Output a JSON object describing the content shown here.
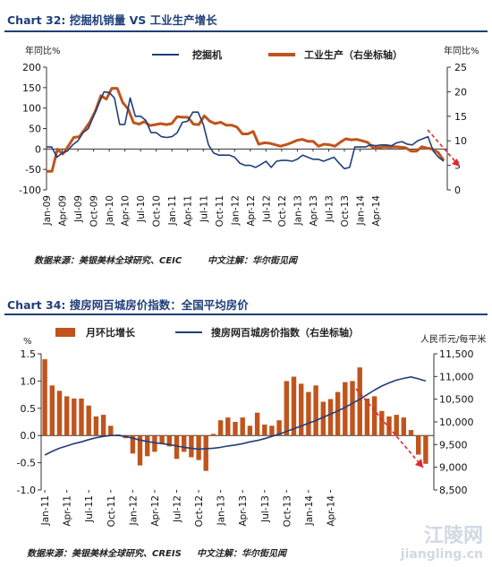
{
  "chart_data": [
    {
      "type": "line",
      "title": "Chart 32: 挖掘机销量 VS 工业生产增长",
      "left_axis_unit": "年同比%",
      "right_axis_unit": "年同比%",
      "ylim_left": [
        -100,
        200
      ],
      "yticks_left": [
        "-100",
        "-50",
        "0",
        "50",
        "100",
        "150",
        "200"
      ],
      "ylim_right": [
        0,
        25
      ],
      "yticks_right": [
        "0",
        "5",
        "10",
        "15",
        "20",
        "25"
      ],
      "x_tick_labels": [
        "Jan-09",
        "Apr-09",
        "Jul-09",
        "Oct-09",
        "Jan-10",
        "Apr-10",
        "Jul-10",
        "Oct-10",
        "Jan-11",
        "Apr-11",
        "Jul-11",
        "Oct-11",
        "Jan-12",
        "Apr-12",
        "Jul-12",
        "Oct-12",
        "Jan-13",
        "Apr-13",
        "Jul-13",
        "Oct-13",
        "Jan-14",
        "Apr-14"
      ],
      "grid": false,
      "legend_placement": "top",
      "series": [
        {
          "name": "挖掘机",
          "axis": "left",
          "color": "#1f3f7a",
          "values": [
            5,
            5,
            -20,
            -10,
            -5,
            10,
            20,
            40,
            50,
            80,
            110,
            140,
            138,
            125,
            60,
            60,
            125,
            80,
            80,
            70,
            40,
            40,
            30,
            28,
            30,
            40,
            65,
            68,
            90,
            90,
            60,
            10,
            -10,
            -15,
            -15,
            -15,
            -20,
            -35,
            -40,
            -40,
            -45,
            -38,
            -30,
            -45,
            -30,
            -28,
            -28,
            -30,
            -25,
            -15,
            -20,
            -25,
            -25,
            -30,
            -25,
            -20,
            -35,
            -48,
            -45,
            5,
            5,
            5,
            10,
            8,
            10,
            10,
            8,
            15,
            18,
            12,
            10,
            20,
            25,
            30,
            -5,
            -20,
            -30
          ]
        },
        {
          "name": "工业生产（右坐标轴）",
          "axis": "right",
          "color": "#c0541c",
          "values": [
            3.8,
            3.8,
            8.3,
            7.3,
            8.9,
            10.7,
            10.8,
            12.3,
            13.9,
            16.1,
            19.2,
            18.5,
            20.7,
            20.7,
            17.8,
            16.5,
            13.7,
            13.4,
            13.9,
            13.1,
            13.3,
            13.5,
            13.3,
            13.5,
            14.9,
            14.8,
            14.8,
            13.4,
            13.3,
            15.1,
            14.0,
            13.5,
            13.8,
            13.2,
            13.2,
            12.8,
            11.4,
            11.4,
            11.9,
            9.3,
            9.6,
            9.5,
            9.2,
            8.9,
            9.2,
            9.6,
            10.1,
            10.3,
            9.9,
            9.9,
            8.9,
            9.3,
            9.2,
            8.9,
            9.7,
            10.4,
            10.2,
            10.3,
            10.0,
            9.7,
            8.6,
            8.6,
            8.8,
            8.7,
            8.8,
            8.7,
            8.6,
            7.9,
            7.9,
            8.8,
            8.5,
            8.3,
            7.6,
            6.0
          ]
        }
      ],
      "source_note": "数据来源：美银美林全球研究、CEIC",
      "translation_note": "中文注解：华尔街见闻"
    },
    {
      "type": "bar",
      "title": "Chart 34: 搜房网百城房价指数：全国平均房价",
      "left_axis_unit": "%",
      "right_axis_unit": "人民币元/每平米",
      "ylim_left": [
        -1.0,
        1.5
      ],
      "yticks_left": [
        "-1.0",
        "-0.5",
        "0.0",
        "0.5",
        "1.0",
        "1.5"
      ],
      "ylim_right": [
        8500,
        11500
      ],
      "yticks_right": [
        "8,500",
        "9,000",
        "9,500",
        "10,000",
        "10,500",
        "11,000",
        "11,500"
      ],
      "x_tick_labels": [
        "Jan-11",
        "Apr-11",
        "Jul-11",
        "Oct-11",
        "Jan-12",
        "Apr-12",
        "Jul-12",
        "Oct-12",
        "Jan-13",
        "Apr-13",
        "Jul-13",
        "Oct-13",
        "Jan-14",
        "Apr-14"
      ],
      "grid": false,
      "legend_placement": "top",
      "series": [
        {
          "name": "月环比增长",
          "axis": "left",
          "type": "bar",
          "color": "#c0541c",
          "values": [
            1.4,
            0.92,
            0.82,
            0.72,
            0.68,
            0.68,
            0.55,
            0.35,
            0.38,
            0.18,
            0.02,
            -0.05,
            -0.33,
            -0.55,
            -0.38,
            -0.3,
            -0.15,
            -0.2,
            -0.43,
            -0.3,
            -0.4,
            -0.45,
            -0.65,
            0.03,
            0.28,
            0.33,
            0.25,
            0.33,
            0.18,
            0.42,
            0.2,
            0.18,
            0.28,
            1.0,
            1.08,
            0.95,
            0.8,
            0.92,
            0.62,
            0.67,
            0.8,
            0.98,
            1.0,
            1.25,
            0.68,
            0.72,
            0.45,
            0.35,
            0.38,
            0.33,
            0.1,
            -0.35,
            -0.52
          ]
        },
        {
          "name": "搜房网百城房价指数（右坐标轴）",
          "axis": "right",
          "type": "line",
          "color": "#1f3f7a",
          "values": [
            9270,
            9350,
            9420,
            9470,
            9520,
            9560,
            9610,
            9650,
            9680,
            9700,
            9700,
            9680,
            9640,
            9600,
            9570,
            9540,
            9520,
            9500,
            9470,
            9440,
            9420,
            9400,
            9410,
            9420,
            9440,
            9470,
            9490,
            9520,
            9560,
            9590,
            9630,
            9680,
            9730,
            9790,
            9850,
            9910,
            9970,
            10030,
            10100,
            10170,
            10240,
            10320,
            10410,
            10500,
            10600,
            10700,
            10790,
            10860,
            10920,
            10960,
            10990,
            10950,
            10900
          ]
        }
      ],
      "source_note": "数据来源：美银美林全球研究、CREIS",
      "translation_note": "中文注解：华尔街见闻"
    }
  ],
  "watermark": {
    "line1": "江陵网",
    "line2": "jiangling.cn"
  }
}
